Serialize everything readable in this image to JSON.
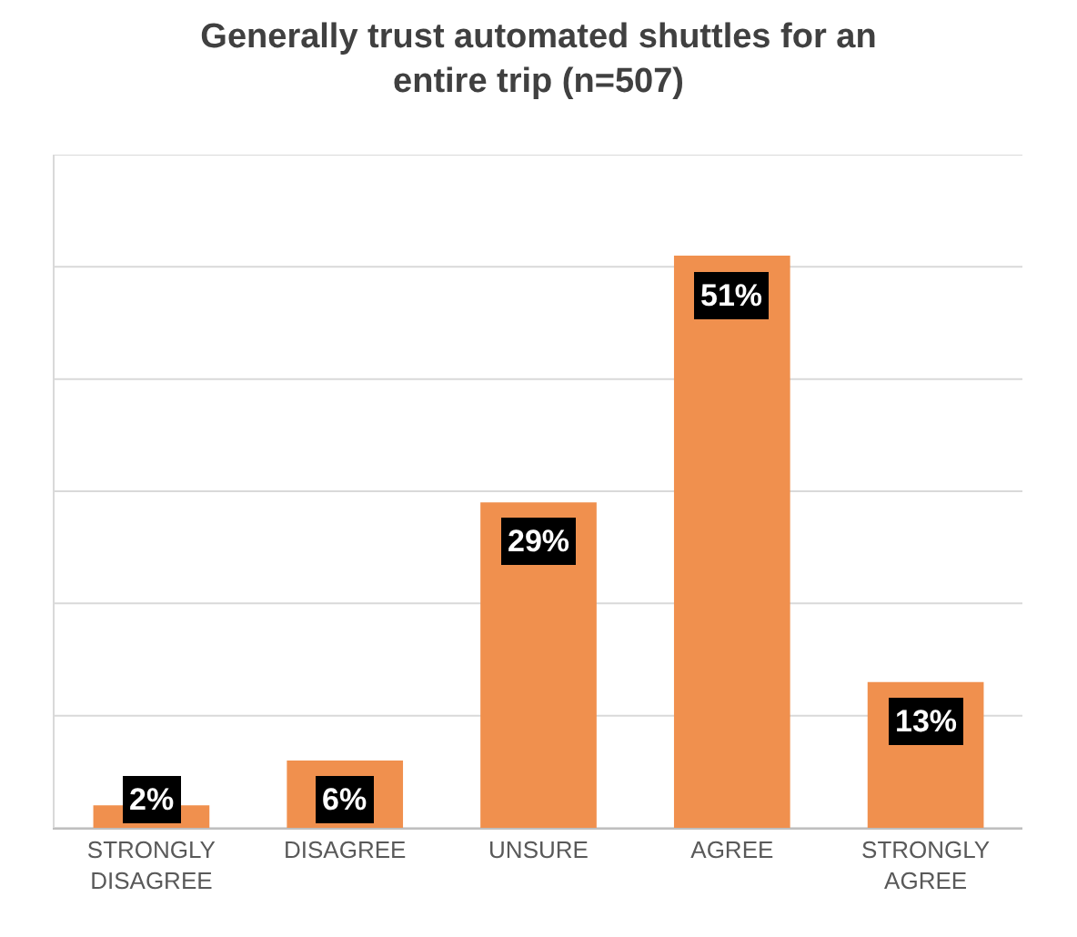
{
  "chart_data": {
    "type": "bar",
    "title": "Generally trust automated shuttles for an entire trip (n=507)",
    "categories": [
      "STRONGLY DISAGREE",
      "DISAGREE",
      "UNSURE",
      "AGREE",
      "STRONGLY AGREE"
    ],
    "values": [
      2,
      6,
      29,
      51,
      13
    ],
    "color": "#f0904e",
    "value_labels": [
      "2%",
      "6%",
      "29%",
      "51%",
      "13%"
    ],
    "ylim": [
      0,
      60
    ],
    "yticks": [
      {
        "value": 0,
        "label": null
      },
      {
        "value": 10,
        "label": null
      },
      {
        "value": 20,
        "label": null
      },
      {
        "value": 30,
        "label": null
      },
      {
        "value": 40,
        "label": null
      },
      {
        "value": 50,
        "label": null
      },
      {
        "value": 60,
        "label": null
      }
    ],
    "tick_labels": "x",
    "grid": "y"
  }
}
